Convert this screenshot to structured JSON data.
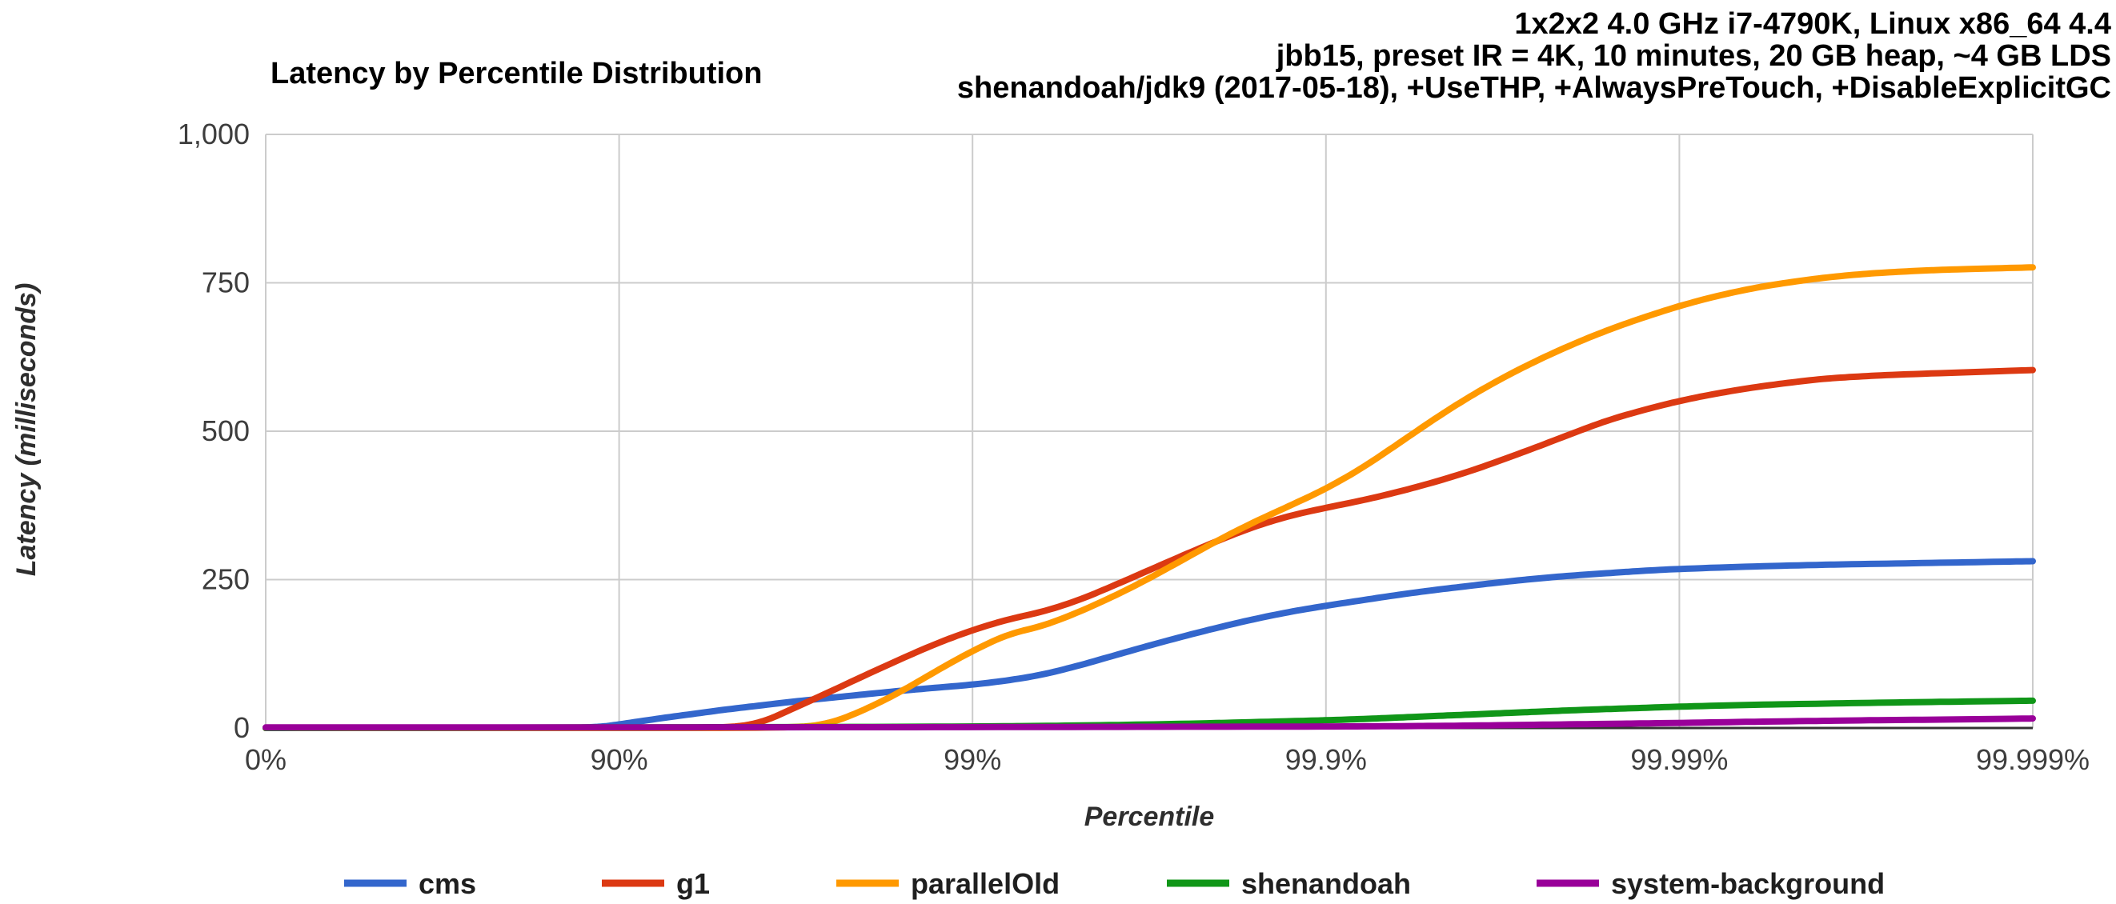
{
  "header": {
    "lines": [
      "1x2x2 4.0 GHz i7-4790K, Linux x86_64 4.4",
      "jbb15, preset IR = 4K, 10 minutes, 20 GB heap, ~4 GB LDS",
      "shenandoah/jdk9 (2017-05-18), +UseTHP, +AlwaysPreTouch, +DisableExplicitGC"
    ]
  },
  "chart_data": {
    "type": "line",
    "title": "Latency by Percentile Distribution",
    "xlabel": "Percentile",
    "ylabel": "Latency (milliseconds)",
    "x_scale": "logarithmic-percentile (nines: u = -log10(1-p))",
    "ylim": [
      0,
      1000
    ],
    "grid": true,
    "legend_position": "bottom",
    "colors": {
      "grid": "#cccccc",
      "baseline": "#333333",
      "tick_text": "#3d3d3d"
    },
    "x_ticks": [
      {
        "nines": 0,
        "label": "0%"
      },
      {
        "nines": 1,
        "label": "90%"
      },
      {
        "nines": 2,
        "label": "99%"
      },
      {
        "nines": 3,
        "label": "99.9%"
      },
      {
        "nines": 4,
        "label": "99.99%"
      },
      {
        "nines": 5,
        "label": "99.999%"
      }
    ],
    "y_ticks": [
      {
        "value": 0,
        "label": "0"
      },
      {
        "value": 250,
        "label": "250"
      },
      {
        "value": 500,
        "label": "500"
      },
      {
        "value": 750,
        "label": "750"
      },
      {
        "value": 1000,
        "label": "1,000"
      }
    ],
    "series": [
      {
        "name": "cms",
        "color": "#3366CC",
        "points": [
          [
            0,
            0
          ],
          [
            0.5,
            0
          ],
          [
            0.85,
            0
          ],
          [
            0.95,
            2
          ],
          [
            1.0,
            6
          ],
          [
            1.1,
            15
          ],
          [
            1.2,
            23
          ],
          [
            1.3,
            31
          ],
          [
            1.4,
            38
          ],
          [
            1.5,
            45
          ],
          [
            1.6,
            51
          ],
          [
            1.7,
            57
          ],
          [
            1.8,
            63
          ],
          [
            1.9,
            68
          ],
          [
            2.0,
            73
          ],
          [
            2.1,
            80
          ],
          [
            2.2,
            90
          ],
          [
            2.3,
            105
          ],
          [
            2.4,
            122
          ],
          [
            2.5,
            139
          ],
          [
            2.6,
            155
          ],
          [
            2.7,
            170
          ],
          [
            2.8,
            184
          ],
          [
            2.9,
            196
          ],
          [
            3.0,
            206
          ],
          [
            3.1,
            215
          ],
          [
            3.2,
            224
          ],
          [
            3.3,
            232
          ],
          [
            3.4,
            239
          ],
          [
            3.5,
            246
          ],
          [
            3.6,
            252
          ],
          [
            3.7,
            257
          ],
          [
            3.8,
            261
          ],
          [
            3.9,
            265
          ],
          [
            4.0,
            268
          ],
          [
            4.2,
            272
          ],
          [
            4.4,
            275
          ],
          [
            4.6,
            277
          ],
          [
            4.8,
            279
          ],
          [
            5.0,
            281
          ]
        ]
      },
      {
        "name": "g1",
        "color": "#DC3912",
        "points": [
          [
            0,
            0
          ],
          [
            1.0,
            0
          ],
          [
            1.3,
            0
          ],
          [
            1.4,
            8
          ],
          [
            1.5,
            35
          ],
          [
            1.6,
            62
          ],
          [
            1.7,
            90
          ],
          [
            1.8,
            117
          ],
          [
            1.9,
            143
          ],
          [
            2.0,
            165
          ],
          [
            2.1,
            183
          ],
          [
            2.2,
            196
          ],
          [
            2.3,
            215
          ],
          [
            2.4,
            240
          ],
          [
            2.5,
            266
          ],
          [
            2.6,
            292
          ],
          [
            2.7,
            317
          ],
          [
            2.8,
            340
          ],
          [
            2.9,
            358
          ],
          [
            3.0,
            371
          ],
          [
            3.1,
            383
          ],
          [
            3.2,
            397
          ],
          [
            3.3,
            413
          ],
          [
            3.4,
            431
          ],
          [
            3.5,
            452
          ],
          [
            3.6,
            474
          ],
          [
            3.7,
            497
          ],
          [
            3.8,
            519
          ],
          [
            3.9,
            536
          ],
          [
            4.0,
            551
          ],
          [
            4.1,
            563
          ],
          [
            4.2,
            573
          ],
          [
            4.3,
            581
          ],
          [
            4.4,
            588
          ],
          [
            4.5,
            592
          ],
          [
            4.6,
            595
          ],
          [
            4.8,
            599
          ],
          [
            5.0,
            603
          ]
        ]
      },
      {
        "name": "parallelOld",
        "color": "#FF9900",
        "points": [
          [
            0,
            0
          ],
          [
            1.0,
            0
          ],
          [
            1.5,
            0
          ],
          [
            1.6,
            8
          ],
          [
            1.7,
            32
          ],
          [
            1.8,
            62
          ],
          [
            1.9,
            97
          ],
          [
            2.0,
            130
          ],
          [
            2.1,
            158
          ],
          [
            2.2,
            172
          ],
          [
            2.3,
            195
          ],
          [
            2.4,
            222
          ],
          [
            2.5,
            252
          ],
          [
            2.6,
            285
          ],
          [
            2.7,
            318
          ],
          [
            2.8,
            348
          ],
          [
            2.9,
            375
          ],
          [
            3.0,
            403
          ],
          [
            3.1,
            437
          ],
          [
            3.2,
            477
          ],
          [
            3.3,
            518
          ],
          [
            3.4,
            556
          ],
          [
            3.5,
            590
          ],
          [
            3.6,
            620
          ],
          [
            3.7,
            647
          ],
          [
            3.8,
            671
          ],
          [
            3.9,
            692
          ],
          [
            4.0,
            711
          ],
          [
            4.1,
            727
          ],
          [
            4.2,
            740
          ],
          [
            4.3,
            750
          ],
          [
            4.4,
            758
          ],
          [
            4.5,
            764
          ],
          [
            4.6,
            768
          ],
          [
            4.7,
            771
          ],
          [
            4.8,
            773
          ],
          [
            5.0,
            776
          ]
        ]
      },
      {
        "name": "shenandoah",
        "color": "#109618",
        "points": [
          [
            0,
            0
          ],
          [
            1.0,
            1
          ],
          [
            1.5,
            1.5
          ],
          [
            2.0,
            2.5
          ],
          [
            2.2,
            3.5
          ],
          [
            2.4,
            5
          ],
          [
            2.6,
            7
          ],
          [
            2.8,
            10
          ],
          [
            3.0,
            13
          ],
          [
            3.1,
            15
          ],
          [
            3.2,
            17.5
          ],
          [
            3.3,
            20
          ],
          [
            3.4,
            22.5
          ],
          [
            3.5,
            25
          ],
          [
            3.6,
            27.5
          ],
          [
            3.7,
            30
          ],
          [
            3.8,
            32
          ],
          [
            3.9,
            34
          ],
          [
            4.0,
            36
          ],
          [
            4.2,
            39
          ],
          [
            4.4,
            41
          ],
          [
            4.6,
            43
          ],
          [
            4.8,
            44.5
          ],
          [
            5.0,
            46
          ]
        ]
      },
      {
        "name": "system-background",
        "color": "#990099",
        "points": [
          [
            0,
            1
          ],
          [
            1.0,
            1
          ],
          [
            2.0,
            1.5
          ],
          [
            2.5,
            2
          ],
          [
            3.0,
            2.5
          ],
          [
            3.2,
            3
          ],
          [
            3.4,
            4
          ],
          [
            3.6,
            5.5
          ],
          [
            3.8,
            7
          ],
          [
            4.0,
            8.5
          ],
          [
            4.2,
            10.5
          ],
          [
            4.4,
            12
          ],
          [
            4.6,
            13.5
          ],
          [
            4.8,
            14.5
          ],
          [
            5.0,
            16
          ]
        ]
      }
    ]
  }
}
